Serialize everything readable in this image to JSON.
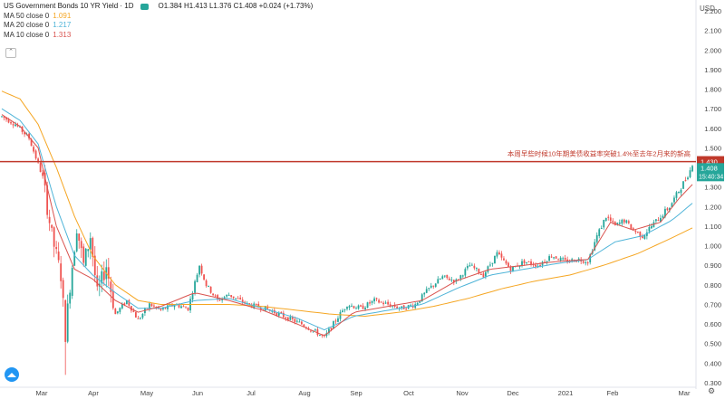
{
  "legend": {
    "title": "US Government Bonds 10 YR Yield · 1D",
    "ohlc": "O1.384 H1.413 L1.376 C1.408 +0.024 (+1.73%)",
    "ma50": {
      "label": "MA 50 close 0",
      "value": "1.091",
      "color": "#f5a623"
    },
    "ma20": {
      "label": "MA 20 close 0",
      "value": "1.217",
      "color": "#4fb4d8"
    },
    "ma10": {
      "label": "MA 10 close 0",
      "value": "1.313",
      "color": "#d9534f"
    }
  },
  "colors": {
    "up": "#26a69a",
    "down": "#ef5350",
    "hline": "#c0392b"
  },
  "currency_label": "USD",
  "chart_data": {
    "type": "candlestick",
    "title": "",
    "ylim": [
      0.3,
      2.2
    ],
    "y_ticks": [
      "2.200",
      "2.100",
      "2.000",
      "1.900",
      "1.800",
      "1.700",
      "1.600",
      "1.500",
      "1.400",
      "1.300",
      "1.200",
      "1.100",
      "1.000",
      "0.900",
      "0.800",
      "0.700",
      "0.600",
      "0.500",
      "0.400",
      "0.300"
    ],
    "x_ticks": [
      "Mar",
      "Apr",
      "May",
      "Jun",
      "Jul",
      "Aug",
      "Sep",
      "Oct",
      "Nov",
      "Dec",
      "2021",
      "Feb",
      "Mar"
    ],
    "horizontal_line": {
      "value": 1.43,
      "label": "1.430",
      "annotation": "本周早些时候10年期美债收益率突破1.4%至去年2月来的新高"
    },
    "price_label": {
      "value": 1.408,
      "label": "1.408",
      "countdown": "15:40:34"
    },
    "price_path": [
      [
        0,
        1.66
      ],
      [
        6,
        1.62
      ],
      [
        12,
        1.55
      ],
      [
        18,
        1.35
      ],
      [
        22,
        1.05
      ],
      [
        26,
        0.85
      ],
      [
        28,
        0.55
      ],
      [
        30,
        0.8
      ],
      [
        33,
        1.1
      ],
      [
        36,
        0.9
      ],
      [
        39,
        1.05
      ],
      [
        42,
        0.75
      ],
      [
        46,
        0.9
      ],
      [
        50,
        0.65
      ],
      [
        55,
        0.72
      ],
      [
        60,
        0.62
      ],
      [
        65,
        0.7
      ],
      [
        70,
        0.67
      ],
      [
        76,
        0.7
      ],
      [
        82,
        0.68
      ],
      [
        87,
        0.9
      ],
      [
        90,
        0.8
      ],
      [
        95,
        0.72
      ],
      [
        100,
        0.75
      ],
      [
        108,
        0.7
      ],
      [
        116,
        0.68
      ],
      [
        124,
        0.64
      ],
      [
        132,
        0.6
      ],
      [
        138,
        0.56
      ],
      [
        142,
        0.53
      ],
      [
        147,
        0.62
      ],
      [
        152,
        0.7
      ],
      [
        158,
        0.68
      ],
      [
        164,
        0.72
      ],
      [
        170,
        0.7
      ],
      [
        176,
        0.68
      ],
      [
        182,
        0.7
      ],
      [
        188,
        0.78
      ],
      [
        194,
        0.84
      ],
      [
        200,
        0.82
      ],
      [
        206,
        0.9
      ],
      [
        212,
        0.85
      ],
      [
        218,
        0.96
      ],
      [
        224,
        0.88
      ],
      [
        230,
        0.92
      ],
      [
        236,
        0.9
      ],
      [
        242,
        0.95
      ],
      [
        248,
        0.92
      ],
      [
        254,
        0.93
      ],
      [
        258,
        0.92
      ],
      [
        262,
        1.05
      ],
      [
        266,
        1.15
      ],
      [
        270,
        1.1
      ],
      [
        274,
        1.13
      ],
      [
        278,
        1.08
      ],
      [
        282,
        1.05
      ],
      [
        286,
        1.1
      ],
      [
        290,
        1.15
      ],
      [
        294,
        1.2
      ],
      [
        298,
        1.28
      ],
      [
        301,
        1.34
      ],
      [
        304,
        1.408
      ]
    ],
    "ma50_path": [
      [
        0,
        1.79
      ],
      [
        8,
        1.75
      ],
      [
        16,
        1.62
      ],
      [
        24,
        1.4
      ],
      [
        32,
        1.15
      ],
      [
        40,
        0.95
      ],
      [
        50,
        0.8
      ],
      [
        60,
        0.72
      ],
      [
        70,
        0.7
      ],
      [
        85,
        0.7
      ],
      [
        100,
        0.7
      ],
      [
        115,
        0.69
      ],
      [
        130,
        0.67
      ],
      [
        145,
        0.65
      ],
      [
        160,
        0.64
      ],
      [
        175,
        0.66
      ],
      [
        190,
        0.69
      ],
      [
        205,
        0.73
      ],
      [
        220,
        0.78
      ],
      [
        235,
        0.82
      ],
      [
        250,
        0.85
      ],
      [
        265,
        0.9
      ],
      [
        280,
        0.96
      ],
      [
        295,
        1.04
      ],
      [
        304,
        1.091
      ]
    ],
    "ma20_path": [
      [
        0,
        1.7
      ],
      [
        8,
        1.64
      ],
      [
        16,
        1.52
      ],
      [
        24,
        1.2
      ],
      [
        32,
        0.95
      ],
      [
        40,
        0.85
      ],
      [
        50,
        0.76
      ],
      [
        60,
        0.68
      ],
      [
        70,
        0.68
      ],
      [
        85,
        0.72
      ],
      [
        100,
        0.73
      ],
      [
        115,
        0.68
      ],
      [
        130,
        0.63
      ],
      [
        142,
        0.57
      ],
      [
        155,
        0.64
      ],
      [
        170,
        0.67
      ],
      [
        185,
        0.7
      ],
      [
        200,
        0.78
      ],
      [
        215,
        0.85
      ],
      [
        230,
        0.88
      ],
      [
        245,
        0.91
      ],
      [
        258,
        0.93
      ],
      [
        270,
        1.02
      ],
      [
        282,
        1.05
      ],
      [
        295,
        1.13
      ],
      [
        304,
        1.217
      ]
    ],
    "ma10_path": [
      [
        0,
        1.67
      ],
      [
        8,
        1.61
      ],
      [
        16,
        1.5
      ],
      [
        24,
        1.1
      ],
      [
        32,
        0.88
      ],
      [
        40,
        0.83
      ],
      [
        50,
        0.72
      ],
      [
        60,
        0.66
      ],
      [
        70,
        0.69
      ],
      [
        85,
        0.76
      ],
      [
        100,
        0.72
      ],
      [
        115,
        0.67
      ],
      [
        130,
        0.6
      ],
      [
        142,
        0.54
      ],
      [
        155,
        0.66
      ],
      [
        170,
        0.69
      ],
      [
        185,
        0.72
      ],
      [
        200,
        0.82
      ],
      [
        215,
        0.88
      ],
      [
        230,
        0.9
      ],
      [
        245,
        0.92
      ],
      [
        258,
        0.93
      ],
      [
        268,
        1.12
      ],
      [
        278,
        1.08
      ],
      [
        290,
        1.12
      ],
      [
        298,
        1.24
      ],
      [
        304,
        1.313
      ]
    ]
  }
}
